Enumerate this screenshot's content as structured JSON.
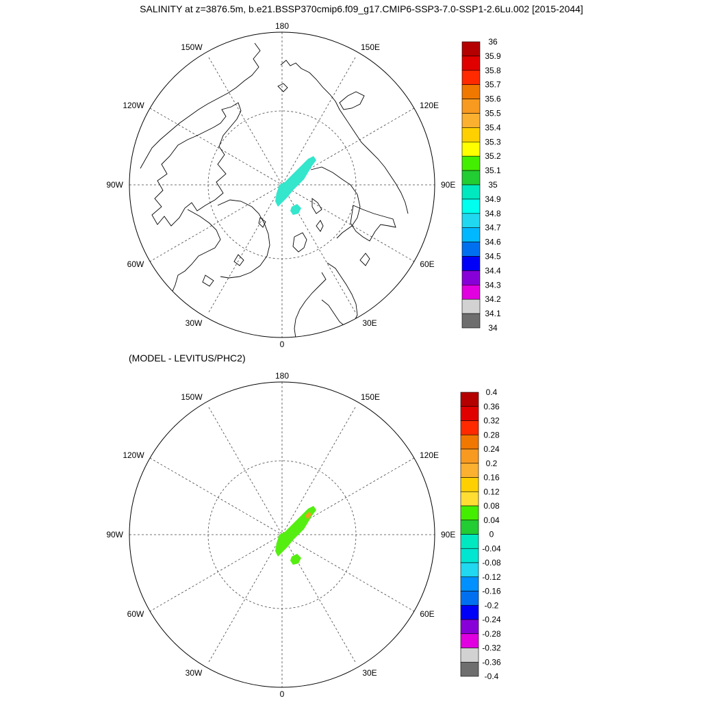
{
  "title": "SALINITY at z=3876.5m, b.e21.BSSP370cmip6.f09_g17.CMIP6-SSP3-7.0-SSP1-2.6Lu.002 [2015-2044]",
  "subtitle": "(MODEL - LEVITUS/PHC2)",
  "longitude_labels": {
    "top": "180",
    "bottom": "0",
    "left": "90W",
    "right": "90E",
    "upper_left": "150W",
    "upper_right": "150E",
    "mid_upper_left": "120W",
    "mid_upper_right": "120E",
    "mid_lower_left": "60W",
    "mid_lower_right": "60E",
    "lower_left": "30W",
    "lower_right": "30E"
  },
  "panels": [
    {
      "name": "salinity",
      "colorbar": {
        "labels": [
          "36",
          "35.9",
          "35.8",
          "35.7",
          "35.6",
          "35.5",
          "35.4",
          "35.3",
          "35.2",
          "35.1",
          "35",
          "34.9",
          "34.8",
          "34.7",
          "34.6",
          "34.5",
          "34.4",
          "34.3",
          "34.2",
          "34.1",
          "34"
        ],
        "colors": [
          "#b40000",
          "#e00000",
          "#ff2a00",
          "#f07800",
          "#f89a20",
          "#fbb030",
          "#ffd000",
          "#ffff00",
          "#44ee00",
          "#22cc33",
          "#00e8c0",
          "#00ffee",
          "#20d8f0",
          "#00b8ff",
          "#0070f0",
          "#0000f8",
          "#8800d8",
          "#e000e0",
          "#d2d2d2",
          "#6e6e6e"
        ],
        "field_color": "#33e6cc"
      }
    },
    {
      "name": "difference",
      "colorbar": {
        "labels": [
          "0.4",
          "0.36",
          "0.32",
          "0.28",
          "0.24",
          "0.2",
          "0.16",
          "0.12",
          "0.08",
          "0.04",
          "0",
          "-0.04",
          "-0.08",
          "-0.12",
          "-0.16",
          "-0.2",
          "-0.24",
          "-0.28",
          "-0.32",
          "-0.36",
          "-0.4"
        ],
        "colors": [
          "#b40000",
          "#e00000",
          "#ff2a00",
          "#f07800",
          "#f89a20",
          "#fbb030",
          "#ffd000",
          "#ffdd33",
          "#44ee00",
          "#22cc33",
          "#00e8c0",
          "#00e6d0",
          "#20d8f0",
          "#0090ff",
          "#0070f0",
          "#0000f8",
          "#8800d8",
          "#e000e0",
          "#d2d2d2",
          "#6e6e6e"
        ],
        "field_color": "#55ee11",
        "accent_color": "#f0a020"
      }
    }
  ]
}
